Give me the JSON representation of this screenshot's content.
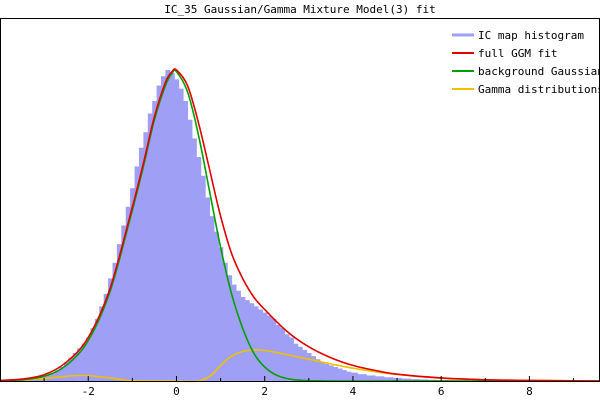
{
  "chart_data": {
    "type": "area",
    "title": "IC_35 Gaussian/Gamma Mixture Model(3) fit",
    "xlabel": "",
    "ylabel": "",
    "xlim": [
      -4.0,
      9.6
    ],
    "ylim": [
      0,
      1.0
    ],
    "xticks": [
      -2,
      0,
      2,
      4,
      6,
      8
    ],
    "xtick_labels": [
      "-2",
      "0",
      "2",
      "4",
      "6",
      "8"
    ],
    "grid": false,
    "legend_position": "top-right",
    "legend": [
      "IC map histogram",
      "full GGM fit",
      "background Gaussian",
      "Gamma distributions"
    ],
    "colors": {
      "histogram": "#9f9ff5",
      "full_fit": "#e00000",
      "background": "#00a000",
      "gamma": "#f0c000"
    },
    "histogram": {
      "name": "IC map histogram",
      "bin_width": 0.1,
      "x": [
        -3.5,
        -3.4,
        -3.3,
        -3.2,
        -3.1,
        -3.0,
        -2.9,
        -2.8,
        -2.7,
        -2.6,
        -2.5,
        -2.4,
        -2.3,
        -2.2,
        -2.1,
        -2.0,
        -1.9,
        -1.8,
        -1.7,
        -1.6,
        -1.5,
        -1.4,
        -1.3,
        -1.2,
        -1.1,
        -1.0,
        -0.9,
        -0.8,
        -0.7,
        -0.6,
        -0.5,
        -0.4,
        -0.3,
        -0.2,
        -0.1,
        0.0,
        0.1,
        0.2,
        0.3,
        0.4,
        0.5,
        0.6,
        0.7,
        0.8,
        0.9,
        1.0,
        1.1,
        1.2,
        1.3,
        1.4,
        1.5,
        1.6,
        1.7,
        1.8,
        1.9,
        2.0,
        2.1,
        2.2,
        2.3,
        2.4,
        2.5,
        2.6,
        2.7,
        2.8,
        2.9,
        3.0,
        3.1,
        3.2,
        3.3,
        3.4,
        3.5,
        3.6,
        3.7,
        3.8,
        3.9,
        4.0,
        4.2,
        4.4,
        4.6,
        4.8,
        5.0,
        5.2,
        5.4,
        5.6,
        5.8,
        6.0,
        6.5,
        7.0,
        7.5,
        8.0
      ],
      "values": [
        0.002,
        0.004,
        0.006,
        0.008,
        0.011,
        0.015,
        0.019,
        0.025,
        0.033,
        0.045,
        0.06,
        0.075,
        0.09,
        0.105,
        0.12,
        0.14,
        0.17,
        0.2,
        0.24,
        0.28,
        0.33,
        0.38,
        0.44,
        0.5,
        0.56,
        0.62,
        0.69,
        0.75,
        0.8,
        0.86,
        0.9,
        0.95,
        0.98,
        1.0,
        0.99,
        0.97,
        0.94,
        0.9,
        0.84,
        0.78,
        0.72,
        0.66,
        0.59,
        0.53,
        0.48,
        0.43,
        0.38,
        0.34,
        0.31,
        0.29,
        0.27,
        0.26,
        0.25,
        0.24,
        0.23,
        0.22,
        0.21,
        0.2,
        0.18,
        0.17,
        0.15,
        0.14,
        0.12,
        0.11,
        0.1,
        0.09,
        0.08,
        0.07,
        0.06,
        0.055,
        0.05,
        0.045,
        0.04,
        0.035,
        0.03,
        0.027,
        0.022,
        0.018,
        0.015,
        0.012,
        0.01,
        0.008,
        0.006,
        0.005,
        0.004,
        0.003,
        0.002,
        0.002,
        0.001,
        0.001
      ]
    },
    "series": [
      {
        "name": "full GGM fit",
        "x": [
          -4.0,
          -3.5,
          -3.0,
          -2.5,
          -2.0,
          -1.5,
          -1.0,
          -0.75,
          -0.5,
          -0.25,
          -0.1,
          0.0,
          0.25,
          0.5,
          0.75,
          1.0,
          1.25,
          1.5,
          1.75,
          2.0,
          2.5,
          3.0,
          3.5,
          4.0,
          4.5,
          5.0,
          6.0,
          7.0,
          8.0,
          9.6
        ],
        "values": [
          0.002,
          0.006,
          0.02,
          0.06,
          0.14,
          0.3,
          0.56,
          0.7,
          0.85,
          0.96,
          0.995,
          1.0,
          0.95,
          0.83,
          0.68,
          0.53,
          0.41,
          0.33,
          0.27,
          0.23,
          0.16,
          0.11,
          0.075,
          0.05,
          0.034,
          0.022,
          0.01,
          0.004,
          0.002,
          0.0
        ]
      },
      {
        "name": "background Gaussian",
        "x": [
          -4.0,
          -3.5,
          -3.0,
          -2.5,
          -2.0,
          -1.5,
          -1.0,
          -0.75,
          -0.5,
          -0.25,
          -0.1,
          0.0,
          0.25,
          0.5,
          0.75,
          1.0,
          1.25,
          1.5,
          1.75,
          2.0,
          2.25,
          2.5,
          2.75,
          3.0,
          3.5,
          4.0,
          9.6
        ],
        "values": [
          0.001,
          0.004,
          0.015,
          0.05,
          0.13,
          0.29,
          0.55,
          0.69,
          0.84,
          0.95,
          0.99,
          0.995,
          0.93,
          0.79,
          0.61,
          0.43,
          0.28,
          0.17,
          0.09,
          0.045,
          0.02,
          0.008,
          0.003,
          0.001,
          0.0,
          0.0,
          0.0
        ]
      },
      {
        "name": "Gamma distributions",
        "x": [
          -4.0,
          -3.5,
          -3.0,
          -2.5,
          -2.2,
          -2.0,
          -1.5,
          -1.2,
          -1.0,
          0.0,
          0.5,
          0.8,
          1.0,
          1.25,
          1.5,
          1.75,
          2.0,
          2.25,
          2.5,
          3.0,
          3.5,
          4.0,
          4.5,
          5.0,
          6.0,
          7.0,
          8.0,
          9.6
        ],
        "values": [
          0.0,
          0.003,
          0.008,
          0.015,
          0.018,
          0.017,
          0.01,
          0.004,
          0.001,
          0.0,
          0.0,
          0.02,
          0.05,
          0.08,
          0.095,
          0.1,
          0.098,
          0.092,
          0.085,
          0.07,
          0.055,
          0.041,
          0.03,
          0.021,
          0.009,
          0.004,
          0.002,
          0.0
        ]
      }
    ]
  }
}
